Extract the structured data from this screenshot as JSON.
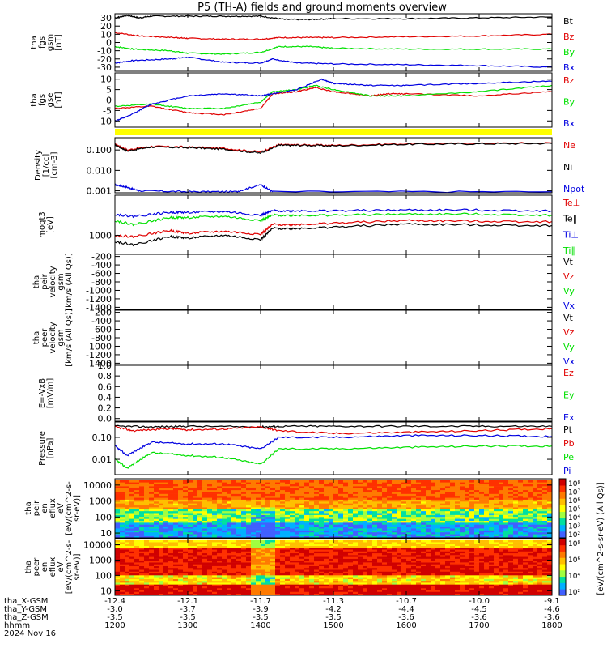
{
  "title": "P5 (TH-A) fields and ground moments overview",
  "colors": {
    "black": "#000000",
    "red": "#e00000",
    "green": "#00e000",
    "blue": "#0000e0",
    "yellow": "#ffff00"
  },
  "chart_data": [
    {
      "type": "line",
      "panel": "fgs-gsm",
      "ylabel": [
        "tha",
        "fgs",
        "gsm",
        "[nT]"
      ],
      "yticks": [
        30,
        20,
        10,
        0,
        -10,
        -20,
        -30
      ],
      "ylim": [
        -35,
        35
      ],
      "series": [
        {
          "name": "Bt",
          "color": "black",
          "x": [
            1200,
            1210,
            1220,
            1230,
            1300,
            1330,
            1400,
            1420,
            1440,
            1500,
            1600,
            1700,
            1800
          ],
          "y": [
            30,
            33,
            30,
            32,
            32,
            32,
            32,
            28,
            28,
            29,
            29,
            30,
            31
          ]
        },
        {
          "name": "Bz",
          "color": "red",
          "x": [
            1200,
            1220,
            1250,
            1300,
            1330,
            1400,
            1415,
            1440,
            1500,
            1600,
            1700,
            1800
          ],
          "y": [
            12,
            8,
            6,
            5,
            4,
            4,
            6,
            6,
            6,
            7,
            8,
            10
          ]
        },
        {
          "name": "By",
          "color": "green",
          "x": [
            1200,
            1215,
            1245,
            1300,
            1330,
            1400,
            1415,
            1440,
            1500,
            1600,
            1700,
            1800
          ],
          "y": [
            -5,
            -8,
            -10,
            -13,
            -14,
            -12,
            -5,
            -5,
            -7,
            -8,
            -8,
            -8
          ]
        },
        {
          "name": "Bx",
          "color": "blue",
          "x": [
            1200,
            1215,
            1245,
            1300,
            1330,
            1400,
            1410,
            1430,
            1500,
            1600,
            1700,
            1800
          ],
          "y": [
            -25,
            -22,
            -20,
            -18,
            -24,
            -25,
            -20,
            -25,
            -26,
            -27,
            -28,
            -30
          ]
        }
      ]
    },
    {
      "type": "line",
      "panel": "fgs-gse",
      "ylabel": [
        "tha",
        "fgs",
        "gse",
        "[nT]"
      ],
      "yticks": [
        10,
        5,
        0,
        -5,
        -10
      ],
      "ylim": [
        -13,
        13
      ],
      "series": [
        {
          "name": "Bz",
          "color": "red",
          "x": [
            1200,
            1230,
            1300,
            1330,
            1400,
            1410,
            1430,
            1445,
            1500,
            1530,
            1545,
            1600,
            1700,
            1800
          ],
          "y": [
            -4,
            -3,
            -6,
            -7,
            -4,
            3,
            4,
            6,
            4,
            2,
            3,
            3,
            2,
            4
          ]
        },
        {
          "name": "By",
          "color": "green",
          "x": [
            1200,
            1230,
            1300,
            1330,
            1400,
            1410,
            1430,
            1445,
            1500,
            1530,
            1600,
            1700,
            1800
          ],
          "y": [
            -3,
            -2,
            -4,
            -4,
            -1,
            4,
            5,
            7,
            5,
            2,
            2,
            4,
            7
          ]
        },
        {
          "name": "Bx",
          "color": "blue",
          "x": [
            1200,
            1210,
            1230,
            1300,
            1330,
            1400,
            1410,
            1430,
            1450,
            1500,
            1530,
            1600,
            1700,
            1800
          ],
          "y": [
            -10,
            -8,
            -2,
            2,
            3,
            2,
            3,
            5,
            10,
            8,
            7,
            7,
            8,
            9
          ]
        }
      ]
    },
    {
      "type": "line",
      "panel": "density",
      "ylabel": [
        "Density",
        "[1/cc]",
        "[cm-3]"
      ],
      "yscale": "log",
      "yticks": [
        0.1,
        0.01,
        0.001
      ],
      "ytick_labels": [
        "0.100",
        "0.010",
        "0.001"
      ],
      "ylim": [
        0.0008,
        0.4
      ],
      "series": [
        {
          "name": "Ne",
          "color": "red",
          "x": [
            1200,
            1210,
            1230,
            1300,
            1330,
            1400,
            1415,
            1430,
            1500,
            1600,
            1700,
            1800
          ],
          "y": [
            0.2,
            0.1,
            0.15,
            0.14,
            0.12,
            0.08,
            0.18,
            0.18,
            0.17,
            0.2,
            0.21,
            0.22
          ]
        },
        {
          "name": "Ni",
          "color": "black",
          "x": [
            1200,
            1210,
            1230,
            1300,
            1330,
            1400,
            1415,
            1430,
            1500,
            1600,
            1700,
            1800
          ],
          "y": [
            0.18,
            0.09,
            0.14,
            0.13,
            0.11,
            0.07,
            0.17,
            0.17,
            0.16,
            0.19,
            0.2,
            0.21
          ]
        },
        {
          "name": "Npot",
          "color": "blue",
          "x": [
            1200,
            1210,
            1220,
            1300,
            1340,
            1400,
            1410,
            1800
          ],
          "y": [
            0.002,
            0.0015,
            0.001,
            0.0009,
            0.0009,
            0.002,
            0.0009,
            0.0009
          ]
        }
      ]
    },
    {
      "type": "line",
      "panel": "temperature",
      "ylabel": [
        "moqt3",
        "[eV]"
      ],
      "yscale": "log",
      "yticks": [
        1000
      ],
      "ytick_labels": [
        "1000"
      ],
      "ylim": [
        200,
        30000
      ],
      "series": [
        {
          "name": "Te⊥",
          "color": "red",
          "x": [
            1200,
            1215,
            1245,
            1300,
            1330,
            1400,
            1410,
            1430,
            1500,
            1600,
            1700,
            1800
          ],
          "y": [
            1000,
            900,
            1500,
            1200,
            1400,
            1100,
            2500,
            2500,
            2800,
            3500,
            3300,
            3200
          ]
        },
        {
          "name": "Te∥",
          "color": "black",
          "x": [
            1200,
            1215,
            1245,
            1300,
            1330,
            1400,
            1410,
            1430,
            1500,
            1600,
            1700,
            1800
          ],
          "y": [
            600,
            450,
            900,
            800,
            1000,
            700,
            1800,
            1800,
            2000,
            2600,
            2400,
            2300
          ]
        },
        {
          "name": "Ti⊥",
          "color": "blue",
          "x": [
            1200,
            1215,
            1245,
            1300,
            1330,
            1400,
            1410,
            1430,
            1500,
            1600,
            1700,
            1800
          ],
          "y": [
            6000,
            5000,
            7000,
            7000,
            7500,
            5500,
            8000,
            8000,
            8000,
            8500,
            8500,
            8000
          ]
        },
        {
          "name": "Ti∥",
          "color": "green",
          "x": [
            1200,
            1215,
            1245,
            1300,
            1330,
            1400,
            1410,
            1430,
            1500,
            1600,
            1700,
            1800
          ],
          "y": [
            3500,
            2500,
            4500,
            4500,
            5000,
            3500,
            5500,
            5500,
            5500,
            6000,
            6000,
            5500
          ]
        }
      ]
    },
    {
      "type": "line",
      "panel": "peir-velocity",
      "ylabel": [
        "tha",
        "peir",
        "velocity",
        "gsm",
        "[km/s (All Qs)]"
      ],
      "yticks": [
        -200,
        -400,
        -600,
        -800,
        -1000,
        -1200,
        -1400
      ],
      "ylim": [
        -1450,
        -150
      ],
      "series": [
        {
          "name": "Vt",
          "color": "black",
          "x": [],
          "y": []
        },
        {
          "name": "Vz",
          "color": "red",
          "x": [],
          "y": []
        },
        {
          "name": "Vy",
          "color": "green",
          "x": [],
          "y": []
        },
        {
          "name": "Vx",
          "color": "blue",
          "x": [],
          "y": []
        }
      ]
    },
    {
      "type": "line",
      "panel": "peer-velocity",
      "ylabel": [
        "tha",
        "peer",
        "velocity",
        "gsm",
        "[km/s (All Qs)]"
      ],
      "yticks": [
        -200,
        -400,
        -600,
        -800,
        -1000,
        -1200,
        -1400
      ],
      "ylim": [
        -1450,
        -150
      ],
      "series": [
        {
          "name": "Vt",
          "color": "black",
          "x": [],
          "y": []
        },
        {
          "name": "Vz",
          "color": "red",
          "x": [],
          "y": []
        },
        {
          "name": "Vy",
          "color": "green",
          "x": [],
          "y": []
        },
        {
          "name": "Vx",
          "color": "blue",
          "x": [],
          "y": []
        }
      ]
    },
    {
      "type": "line",
      "panel": "efield",
      "ylabel": [
        "E=-VxB",
        "[mV/m]"
      ],
      "yticks": [
        1.0,
        0.8,
        0.6,
        0.4,
        0.2,
        0.0
      ],
      "ytick_labels": [
        "1.0",
        "0.8",
        "0.6",
        "0.4",
        "0.2",
        "0.0"
      ],
      "ylim": [
        -0.05,
        1.0
      ],
      "series": [
        {
          "name": "Ez",
          "color": "red",
          "x": [],
          "y": []
        },
        {
          "name": "Ey",
          "color": "green",
          "x": [],
          "y": []
        },
        {
          "name": "Ex",
          "color": "blue",
          "x": [],
          "y": []
        }
      ]
    },
    {
      "type": "line",
      "panel": "pressure",
      "ylabel": [
        "Pressure",
        "[nPa]"
      ],
      "yscale": "log",
      "yticks": [
        0.1,
        0.01
      ],
      "ytick_labels": [
        "0.10",
        "0.01"
      ],
      "ylim": [
        0.002,
        0.5
      ],
      "series": [
        {
          "name": "Pt",
          "color": "black",
          "x": [
            1200,
            1230,
            1300,
            1400,
            1415,
            1500,
            1600,
            1700,
            1800
          ],
          "y": [
            0.32,
            0.3,
            0.32,
            0.3,
            0.32,
            0.32,
            0.32,
            0.32,
            0.32
          ]
        },
        {
          "name": "Pb",
          "color": "red",
          "x": [
            1200,
            1215,
            1245,
            1300,
            1330,
            1400,
            1415,
            1500,
            1600,
            1700,
            1800
          ],
          "y": [
            0.3,
            0.2,
            0.25,
            0.22,
            0.24,
            0.3,
            0.2,
            0.15,
            0.17,
            0.2,
            0.25
          ]
        },
        {
          "name": "Pe",
          "color": "green",
          "x": [
            1200,
            1210,
            1230,
            1300,
            1330,
            1400,
            1415,
            1500,
            1600,
            1700,
            1800
          ],
          "y": [
            0.01,
            0.004,
            0.02,
            0.015,
            0.012,
            0.006,
            0.03,
            0.03,
            0.035,
            0.04,
            0.04
          ]
        },
        {
          "name": "Pi",
          "color": "blue",
          "x": [
            1200,
            1210,
            1230,
            1300,
            1330,
            1400,
            1415,
            1500,
            1600,
            1700,
            1800
          ],
          "y": [
            0.04,
            0.015,
            0.06,
            0.05,
            0.05,
            0.03,
            0.1,
            0.1,
            0.12,
            0.12,
            0.11
          ]
        }
      ]
    },
    {
      "type": "heatmap",
      "panel": "peir-en-eflux",
      "ylabel": [
        "tha",
        "peir",
        "en",
        "eflux",
        "eV",
        "[eV/(cm^2-s-",
        "sr-eV)]"
      ],
      "yscale": "log",
      "yticks": [
        10000,
        1000,
        100,
        10
      ],
      "ylim": [
        5,
        25000
      ]
    },
    {
      "type": "heatmap",
      "panel": "peer-en-eflux",
      "ylabel": [
        "tha",
        "peer",
        "en",
        "eflux",
        "eV",
        "[eV/(cm^2-s-",
        "sr-eV)]"
      ],
      "yscale": "log",
      "yticks": [
        10000,
        1000,
        100,
        10
      ],
      "ylim": [
        5,
        25000
      ]
    }
  ],
  "colorbar": {
    "label": "[eV/(cm^2-s-sr-eV) (All Qs)]",
    "top_ticks": [
      "10⁸",
      "10⁷",
      "10⁶",
      "10⁵",
      "10⁴",
      "10³",
      "10²"
    ],
    "bottom_ticks": [
      "10⁸",
      "10⁶",
      "10⁴",
      "10²"
    ]
  },
  "xaxis": {
    "rows": [
      {
        "label": "tha_X-GSM",
        "values": [
          "-12.4",
          "-12.1",
          "-11.7",
          "-11.3",
          "-10.7",
          "-10.0",
          "-9.1"
        ]
      },
      {
        "label": "tha_Y-GSM",
        "values": [
          "-3.0",
          "-3.7",
          "-3.9",
          "-4.2",
          "-4.4",
          "-4.5",
          "-4.6"
        ]
      },
      {
        "label": "tha_Z-GSM",
        "values": [
          "-3.5",
          "-3.5",
          "-3.5",
          "-3.5",
          "-3.6",
          "-3.6",
          "-3.6"
        ]
      },
      {
        "label": "hhmm",
        "values": [
          "1200",
          "1300",
          "1400",
          "1500",
          "1600",
          "1700",
          "1800"
        ]
      }
    ],
    "date": "2024 Nov 16",
    "hhmm_min": 1200,
    "hhmm_max": 1800
  }
}
